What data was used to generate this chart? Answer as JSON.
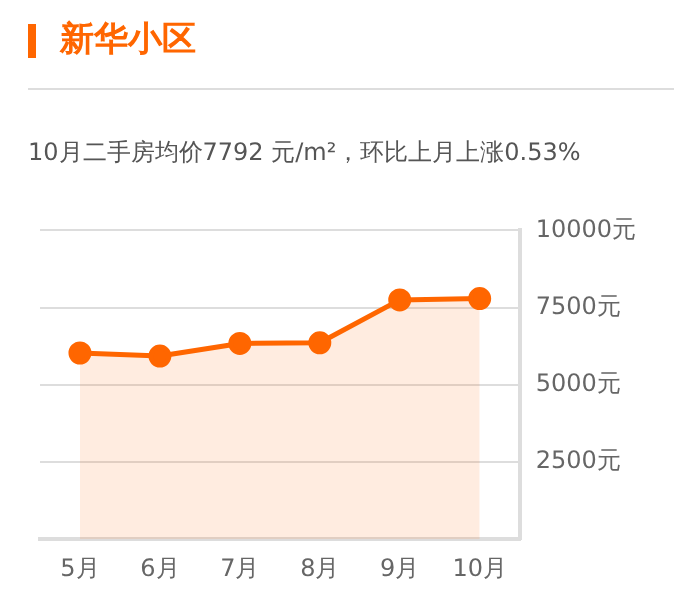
{
  "chart_data": {
    "type": "area",
    "title": "新华小区",
    "subtitle": "10月二手房均价7792 元/m²，环比上月上涨0.53%",
    "categories": [
      "5月",
      "6月",
      "7月",
      "8月",
      "9月",
      "10月"
    ],
    "series": [
      {
        "color": "#ff6600",
        "values": [
          6030,
          5930,
          6340,
          6360,
          7750,
          7792
        ]
      }
    ],
    "ylim": [
      0,
      10000
    ],
    "yticks": [
      {
        "value": 2500,
        "label": "2500元"
      },
      {
        "value": 5000,
        "label": "5000元"
      },
      {
        "value": 7500,
        "label": "7500元"
      },
      {
        "value": 10000,
        "label": "10000元"
      }
    ],
    "grid": "y",
    "marker": "circle",
    "legend": false
  }
}
